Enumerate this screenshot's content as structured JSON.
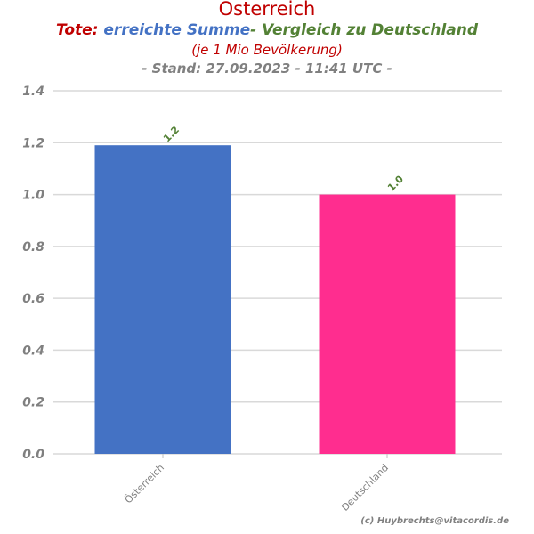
{
  "header": {
    "title": "Österreich",
    "subtitle_part1": "Tote:",
    "subtitle_part2": "erreichte Summe",
    "subtitle_part3": "- Vergleich zu Deutschland",
    "subtitle_line2": "(je 1 Mio Bevölkerung)",
    "subtitle_line3": "- Stand: 27.09.2023 - 11:41 UTC -"
  },
  "footer": {
    "credit": "(c) Huybrechts@vitacordis.de"
  },
  "colors": {
    "title": "#c00000",
    "summe": "#4472c4",
    "vergleich": "#538135",
    "bar_oesterreich": "#4472c4",
    "bar_deutschland": "#ff2d8f",
    "grid": "#d9d9d9",
    "tick_text": "#808080"
  },
  "chart_data": {
    "type": "bar",
    "categories": [
      "Österreich",
      "Deutschland"
    ],
    "values": [
      1.19,
      1.0
    ],
    "data_labels": [
      "1.2",
      "1.0"
    ],
    "bar_colors": [
      "#4472c4",
      "#ff2d8f"
    ],
    "ylim": [
      0,
      1.4
    ],
    "yticks": [
      0.0,
      0.2,
      0.4,
      0.6,
      0.8,
      1.0,
      1.2,
      1.4
    ],
    "ytick_labels": [
      "0.0",
      "0.2",
      "0.4",
      "0.6",
      "0.8",
      "1.0",
      "1.2",
      "1.4"
    ],
    "grid": true
  }
}
